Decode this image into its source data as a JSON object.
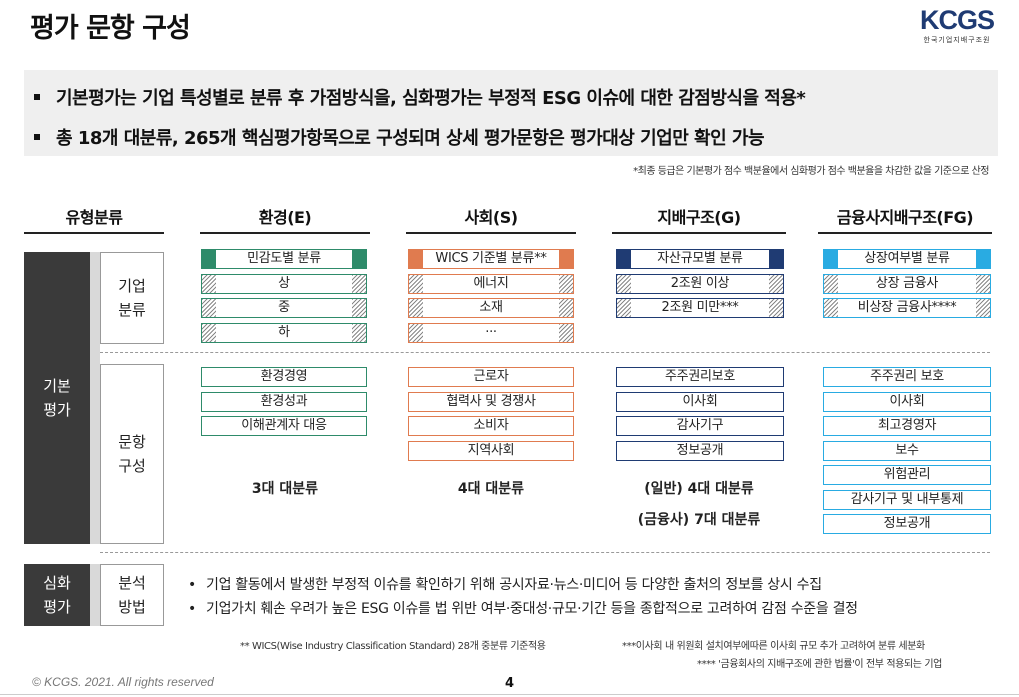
{
  "page_title": "평가 문항 구성",
  "logo": {
    "main": "KCGS",
    "sub": "한국기업지배구조원"
  },
  "summary": [
    "기본평가는 기업 특성별로 분류 후 가점방식을, 심화평가는 부정적 ESG 이슈에 대한 감점방식을 적용*",
    "총 18개 대분류, 265개 핵심평가항목으로 구성되며 상세 평가문항은 평가대상 기업만 확인 가능"
  ],
  "note": "*최종 등급은 기본평가 점수 백분율에서 심화평가 점수 백분율을 차감한 값을 기준으로 산정",
  "headers": [
    "유형분류",
    "환경(E)",
    "사회(S)",
    "지배구조(G)",
    "금융사지배구조(FG)"
  ],
  "left_labels": {
    "basic": "기본\n평가",
    "deep": "심화\n평가",
    "company_class": "기업\n분류",
    "item_comp": "문항\n구성",
    "method": "분석\n방법"
  },
  "colors": {
    "env": "#2e8b6a",
    "soc": "#e07b4f",
    "gov": "#1f3b73",
    "fin": "#29abe2",
    "dark": "#3a3a3a"
  },
  "classification": {
    "env": [
      "민감도별 분류",
      "상",
      "중",
      "하"
    ],
    "soc": [
      "WICS 기준별 분류**",
      "에너지",
      "소재",
      "···"
    ],
    "gov": [
      "자산규모별 분류",
      "2조원 이상",
      "2조원 미만***"
    ],
    "fin": [
      "상장여부별 분류",
      "상장 금융사",
      "비상장 금융사****"
    ]
  },
  "composition": {
    "env": [
      "환경경영",
      "환경성과",
      "이해관계자 대응"
    ],
    "soc": [
      "근로자",
      "협력사 및 경쟁사",
      "소비자",
      "지역사회"
    ],
    "gov": [
      "주주권리보호",
      "이사회",
      "감사기구",
      "정보공개"
    ],
    "fin": [
      "주주권리 보호",
      "이사회",
      "최고경영자",
      "보수",
      "위험관리",
      "감사기구 및 내부통제",
      "정보공개"
    ]
  },
  "counts": {
    "env": "3대 대분류",
    "soc": "4대 대분류",
    "gov1": "(일반) 4대 대분류",
    "gov2": "(금융사) 7대 대분류"
  },
  "deep_bullets": [
    "기업 활동에서 발생한 부정적 이슈를 확인하기 위해 공시자료·뉴스·미디어 등 다양한 출처의 정보를 상시 수집",
    "기업가치 훼손 우려가 높은 ESG 이슈를 법 위반 여부·중대성·규모·기간 등을 종합적으로 고려하여 감점 수준을 결정"
  ],
  "bullet_mark": "•",
  "footnotes": {
    "f1": "** WICS(Wise Industry Classification Standard) 28개 중분류 기준적용",
    "f2": "***이사회 내 위원회 설치여부에따른 이사회 규모 추가 고려하여 분류 세분화",
    "f3": "**** '금융회사의 지배구조에 관한 법률'이 전부 적용되는 기업"
  },
  "copyright": "© KCGS. 2021. All rights reserved",
  "page_number": "4"
}
